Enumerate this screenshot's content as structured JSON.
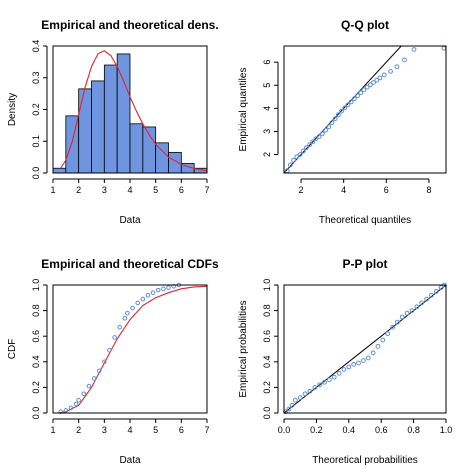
{
  "colors": {
    "bar_fill": "#6f94e0",
    "points": "#5b8fd6",
    "curve": "#e0252c",
    "line": "#000000"
  },
  "chart_data": [
    {
      "type": "bar",
      "title": "Empirical and theoretical dens.",
      "xlabel": "Data",
      "ylabel": "Density",
      "xlim": [
        1,
        7
      ],
      "ylim": [
        0,
        0.4
      ],
      "x_ticks": [
        1,
        2,
        3,
        4,
        5,
        6,
        7
      ],
      "y_ticks": [
        0.0,
        0.1,
        0.2,
        0.3,
        0.4
      ],
      "bins": [
        {
          "x0": 1.0,
          "x1": 1.5,
          "value": 0.015
        },
        {
          "x0": 1.5,
          "x1": 2.0,
          "value": 0.18
        },
        {
          "x0": 2.0,
          "x1": 2.5,
          "value": 0.265
        },
        {
          "x0": 2.5,
          "x1": 3.0,
          "value": 0.29
        },
        {
          "x0": 3.0,
          "x1": 3.5,
          "value": 0.34
        },
        {
          "x0": 3.5,
          "x1": 4.0,
          "value": 0.375
        },
        {
          "x0": 4.0,
          "x1": 4.5,
          "value": 0.155
        },
        {
          "x0": 4.5,
          "x1": 5.0,
          "value": 0.145
        },
        {
          "x0": 5.0,
          "x1": 5.5,
          "value": 0.095
        },
        {
          "x0": 5.5,
          "x1": 6.0,
          "value": 0.065
        },
        {
          "x0": 6.0,
          "x1": 6.5,
          "value": 0.03
        },
        {
          "x0": 6.5,
          "x1": 7.0,
          "value": 0.015
        }
      ],
      "curve": {
        "x": [
          1.3,
          1.5,
          1.75,
          2.0,
          2.25,
          2.5,
          2.75,
          3.0,
          3.25,
          3.5,
          3.75,
          4.0,
          4.25,
          4.5,
          4.75,
          5.0,
          5.5,
          6.0,
          6.5,
          7.0
        ],
        "y": [
          0.015,
          0.04,
          0.1,
          0.185,
          0.27,
          0.335,
          0.375,
          0.385,
          0.37,
          0.335,
          0.29,
          0.24,
          0.195,
          0.155,
          0.12,
          0.09,
          0.05,
          0.027,
          0.014,
          0.007
        ]
      }
    },
    {
      "type": "scatter",
      "title": "Q-Q plot",
      "xlabel": "Theoretical quantiles",
      "ylabel": "Empirical quantiles",
      "xlim": [
        1.2,
        8.8
      ],
      "ylim": [
        1.2,
        6.7
      ],
      "x_ticks": [
        2,
        4,
        6,
        8
      ],
      "y_ticks": [
        2,
        3,
        4,
        5,
        6
      ],
      "reference_line": [
        [
          1.2,
          1.2
        ],
        [
          6.7,
          6.7
        ]
      ],
      "points": {
        "x": [
          1.35,
          1.5,
          1.65,
          1.8,
          1.95,
          2.1,
          2.25,
          2.4,
          2.55,
          2.7,
          2.85,
          3.0,
          3.15,
          3.3,
          3.45,
          3.6,
          3.75,
          3.9,
          4.05,
          4.2,
          4.35,
          4.5,
          4.65,
          4.8,
          4.95,
          5.1,
          5.25,
          5.4,
          5.55,
          5.7,
          5.9,
          6.2,
          6.5,
          6.85,
          7.3,
          8.7
        ],
        "y": [
          1.3,
          1.55,
          1.75,
          1.9,
          2.0,
          2.15,
          2.3,
          2.42,
          2.55,
          2.68,
          2.78,
          2.9,
          3.05,
          3.2,
          3.38,
          3.55,
          3.72,
          3.88,
          4.02,
          4.15,
          4.28,
          4.42,
          4.55,
          4.68,
          4.8,
          4.92,
          5.02,
          5.12,
          5.22,
          5.32,
          5.45,
          5.6,
          5.8,
          6.1,
          6.55,
          6.6
        ]
      }
    },
    {
      "type": "line",
      "title": "Empirical and theoretical CDFs",
      "xlabel": "Data",
      "ylabel": "CDF",
      "xlim": [
        1,
        7
      ],
      "ylim": [
        0,
        1
      ],
      "x_ticks": [
        1,
        2,
        3,
        4,
        5,
        6,
        7
      ],
      "y_ticks": [
        0.0,
        0.2,
        0.4,
        0.6,
        0.8,
        1.0
      ],
      "empirical": {
        "x": [
          1.3,
          1.5,
          1.7,
          1.9,
          2.0,
          2.2,
          2.4,
          2.6,
          2.8,
          3.0,
          3.2,
          3.4,
          3.6,
          3.8,
          3.9,
          4.1,
          4.3,
          4.5,
          4.7,
          4.9,
          5.1,
          5.3,
          5.5,
          5.7,
          5.9
        ],
        "y": [
          0.01,
          0.02,
          0.04,
          0.07,
          0.1,
          0.15,
          0.21,
          0.27,
          0.33,
          0.4,
          0.49,
          0.59,
          0.67,
          0.74,
          0.78,
          0.82,
          0.86,
          0.89,
          0.92,
          0.94,
          0.96,
          0.97,
          0.98,
          0.99,
          1.0
        ]
      },
      "theoretical": {
        "x": [
          1.2,
          1.5,
          2.0,
          2.5,
          3.0,
          3.5,
          4.0,
          4.5,
          5.0,
          5.5,
          6.0,
          6.5,
          7.0
        ],
        "y": [
          0.0,
          0.01,
          0.06,
          0.2,
          0.39,
          0.58,
          0.73,
          0.84,
          0.9,
          0.94,
          0.97,
          0.985,
          0.99
        ]
      }
    },
    {
      "type": "scatter",
      "title": "P-P plot",
      "xlabel": "Theoretical probabilities",
      "ylabel": "Empirical probabilities",
      "xlim": [
        0,
        1
      ],
      "ylim": [
        0,
        1
      ],
      "x_ticks": [
        0.0,
        0.2,
        0.4,
        0.6,
        0.8,
        1.0
      ],
      "y_ticks": [
        0.0,
        0.2,
        0.4,
        0.6,
        0.8,
        1.0
      ],
      "reference_line": [
        [
          0,
          0
        ],
        [
          1,
          1
        ]
      ],
      "points": {
        "x": [
          0.01,
          0.03,
          0.05,
          0.07,
          0.1,
          0.13,
          0.16,
          0.19,
          0.22,
          0.25,
          0.28,
          0.31,
          0.34,
          0.37,
          0.4,
          0.43,
          0.46,
          0.49,
          0.52,
          0.55,
          0.58,
          0.61,
          0.64,
          0.67,
          0.7,
          0.73,
          0.76,
          0.79,
          0.82,
          0.85,
          0.88,
          0.91,
          0.94,
          0.97,
          0.99
        ],
        "y": [
          0.01,
          0.03,
          0.06,
          0.1,
          0.12,
          0.15,
          0.17,
          0.2,
          0.22,
          0.24,
          0.26,
          0.28,
          0.31,
          0.34,
          0.36,
          0.38,
          0.39,
          0.41,
          0.43,
          0.47,
          0.52,
          0.57,
          0.62,
          0.67,
          0.71,
          0.75,
          0.78,
          0.8,
          0.83,
          0.86,
          0.89,
          0.92,
          0.95,
          0.98,
          1.0
        ]
      }
    }
  ]
}
